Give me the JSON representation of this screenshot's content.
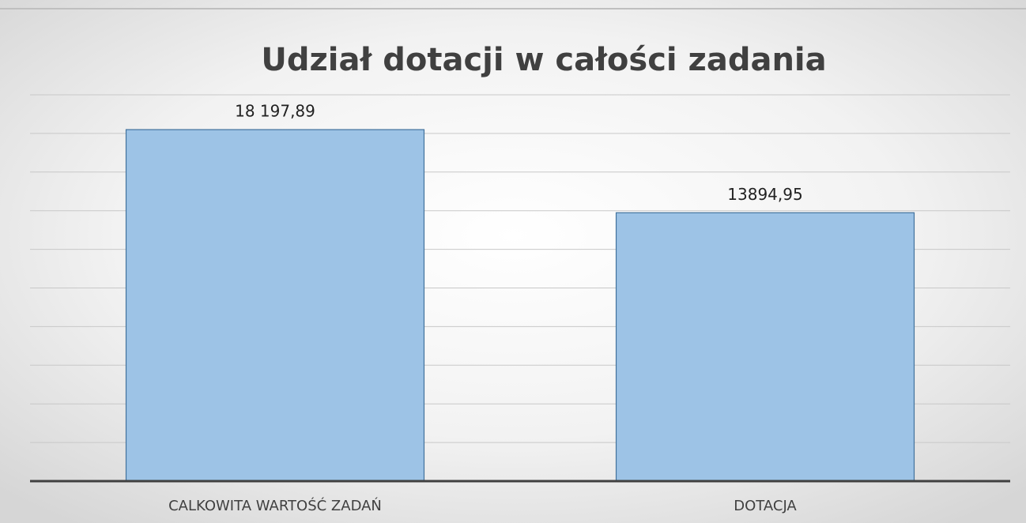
{
  "chart_data": {
    "type": "bar",
    "title": "Udział dotacji w całości zadania",
    "categories": [
      "CALKOWITA WARTOŚĆ ZADAŃ",
      "DOTACJA"
    ],
    "values": [
      18197.89,
      13894.95
    ],
    "value_labels": [
      "18 197,89",
      "13894,95"
    ],
    "color": "#9dc3e6",
    "ylim": [
      0,
      20000
    ],
    "yticks": [
      0,
      2000,
      4000,
      6000,
      8000,
      10000,
      12000,
      14000,
      16000,
      18000,
      20000
    ],
    "grid": true
  }
}
